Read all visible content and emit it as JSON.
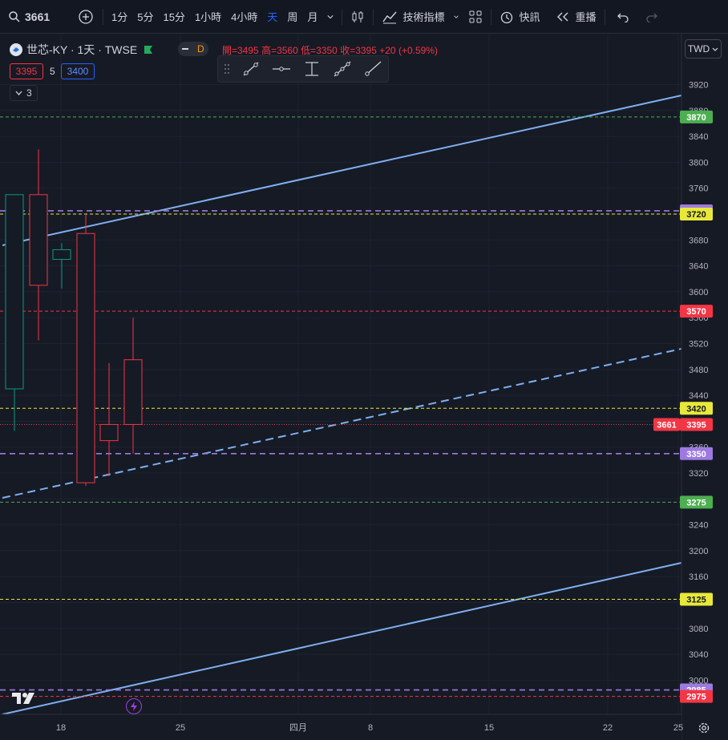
{
  "topbar": {
    "symbol": "3661",
    "intervals": [
      "1分",
      "5分",
      "15分",
      "1小時",
      "4小時",
      "天",
      "周",
      "月"
    ],
    "active_interval": "天",
    "indicators_label": "技術指標",
    "alerts_label": "快訊",
    "replay_label": "重播"
  },
  "legend": {
    "title": "世芯-KY · 1天 · TWSE",
    "badge": "D",
    "open": "開=3495",
    "high": "高=3560",
    "low": "低=3350",
    "close": "收=3395",
    "change": "+20 (+0.59%)",
    "bid": "3395",
    "spread": "5",
    "ask": "3400",
    "collapsed_count": "3"
  },
  "currency": "TWD",
  "colors": {
    "up": "#089981",
    "down": "#f23645",
    "line": "#7fb0f0"
  },
  "chart_data": {
    "type": "candlestick",
    "x_labels": [
      "18",
      "25",
      "四月",
      "8",
      "15",
      "22",
      "25"
    ],
    "y_ticks": [
      3920,
      3880,
      3840,
      3800,
      3760,
      3720,
      3680,
      3640,
      3600,
      3560,
      3520,
      3480,
      3440,
      3400,
      3360,
      3320,
      3280,
      3240,
      3200,
      3160,
      3120,
      3080,
      3040,
      3000
    ],
    "ylim": [
      2960,
      3940
    ],
    "candles": [
      {
        "o": 3450,
        "h": 3750,
        "l": 3385,
        "c": 3750
      },
      {
        "o": 3750,
        "h": 3820,
        "l": 3525,
        "c": 3610
      },
      {
        "o": 3650,
        "h": 3675,
        "l": 3605,
        "c": 3665
      },
      {
        "o": 3690,
        "h": 3720,
        "l": 3300,
        "c": 3305
      },
      {
        "o": 3395,
        "h": 3490,
        "l": 3315,
        "c": 3370
      },
      {
        "o": 3495,
        "h": 3560,
        "l": 3350,
        "c": 3395
      }
    ],
    "price_lines": [
      {
        "value": "3870",
        "color": "#4caf50",
        "style": "dashed"
      },
      {
        "value": "3725",
        "color": "#9c7ae0",
        "style": "dashed"
      },
      {
        "value": "3720",
        "color": "#e8e83a",
        "style": "dashed"
      },
      {
        "value": "3570",
        "color": "#f23645",
        "style": "dashed"
      },
      {
        "value": "3420",
        "color": "#e8e83a",
        "style": "dashed"
      },
      {
        "value": "3350",
        "color": "#9c7ae0",
        "style": "dashed"
      },
      {
        "value": "3275",
        "color": "#4caf50",
        "style": "dashed"
      },
      {
        "value": "3125",
        "color": "#e8e83a",
        "style": "dashed"
      },
      {
        "value": "2985",
        "color": "#9c7ae0",
        "style": "dashed"
      },
      {
        "value": "2975",
        "color": "#f23645",
        "style": "dashed"
      }
    ],
    "last_price": {
      "symbol_label": "3661",
      "value": "3395"
    }
  }
}
